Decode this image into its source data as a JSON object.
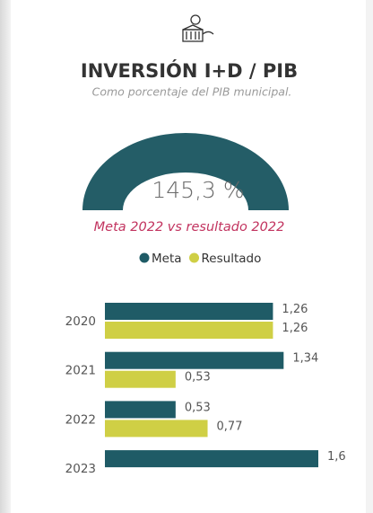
{
  "header": {
    "title": "INVERSIÓN I+D / PIB",
    "subtitle": "Como porcentaje del PIB municipal."
  },
  "chart_data": [
    {
      "type": "gauge",
      "value": 145.3,
      "value_label": "145,3 %",
      "ylim": [
        0,
        145.3
      ],
      "color": "#245d67",
      "annotation": "Meta 2022 vs resultado 2022"
    },
    {
      "type": "bar",
      "orientation": "horizontal",
      "legend": "top",
      "categories": [
        "2020",
        "2021",
        "2022",
        "2023"
      ],
      "xlim": [
        0,
        1.6
      ],
      "series": [
        {
          "name": "Meta",
          "color": "#1f5b66",
          "values": [
            1.26,
            1.34,
            0.53,
            1.6
          ],
          "value_labels": [
            "1,26",
            "1,34",
            "0,53",
            "1,6"
          ]
        },
        {
          "name": "Resultado",
          "color": "#cfcf45",
          "values": [
            1.26,
            0.53,
            0.77,
            null
          ],
          "value_labels": [
            "1,26",
            "0,53",
            "0,77",
            null
          ]
        }
      ]
    }
  ]
}
